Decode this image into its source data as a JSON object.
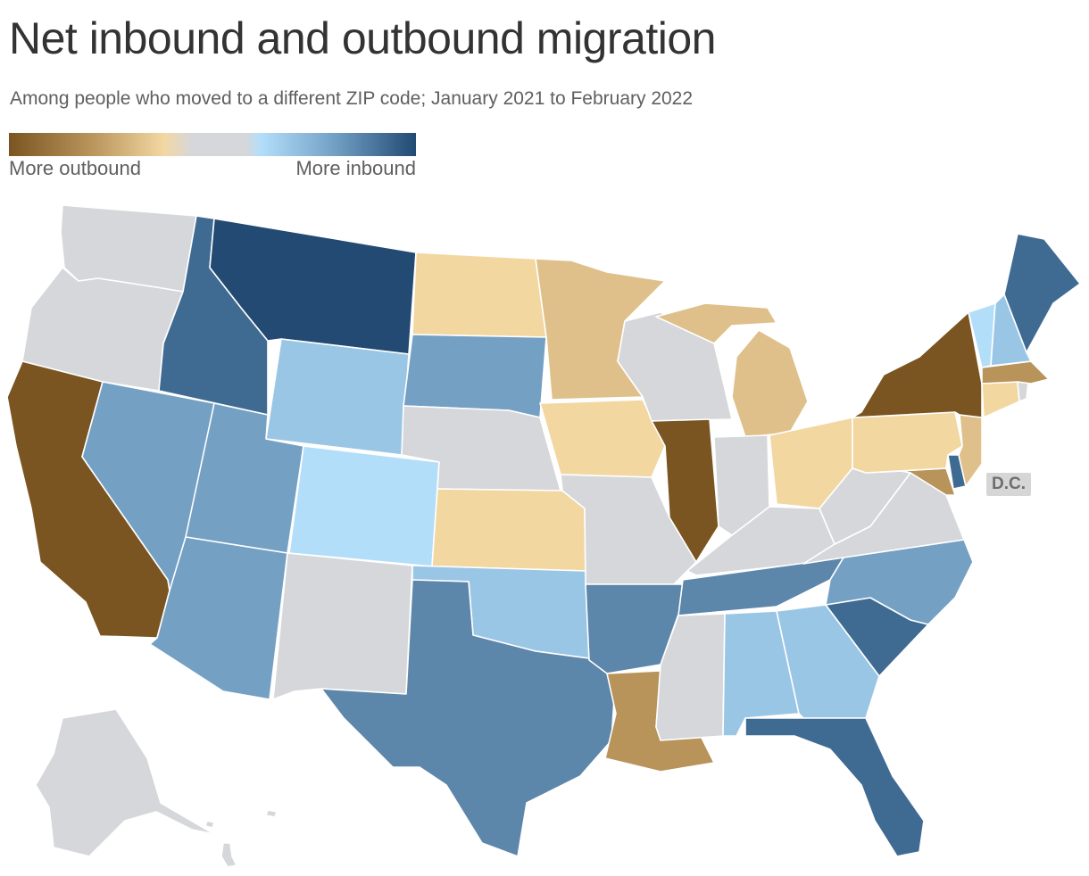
{
  "title": "Net inbound and outbound migration",
  "subtitle": "Among people who moved to a different ZIP code; January 2021 to February 2022",
  "legend": {
    "left_label": "More outbound",
    "right_label": "More inbound",
    "stops": [
      "#7a5521",
      "#b8935a",
      "#f2d7a1",
      "#d6d7da",
      "#b3defa",
      "#72a0c5",
      "#224a73"
    ]
  },
  "dc_label": "D.C.",
  "colors": {
    "strong_in": "#224a73",
    "in_3": "#3f6b93",
    "in_2": "#5d86ab",
    "in_1": "#74a0c4",
    "in_0": "#9ac6e5",
    "light_in": "#b3defa",
    "neutral": "#d6d7da",
    "out_0": "#f2d7a1",
    "out_1": "#dfc08a",
    "out_2": "#b8935a",
    "strong_out": "#7a5521"
  },
  "states": [
    {
      "name": "Washington",
      "level": "neutral"
    },
    {
      "name": "Oregon",
      "level": "neutral"
    },
    {
      "name": "California",
      "level": "strong_out"
    },
    {
      "name": "Idaho",
      "level": "in_3"
    },
    {
      "name": "Nevada",
      "level": "in_1"
    },
    {
      "name": "Montana",
      "level": "strong_in"
    },
    {
      "name": "Wyoming",
      "level": "in_0"
    },
    {
      "name": "Utah",
      "level": "in_1"
    },
    {
      "name": "Arizona",
      "level": "in_1"
    },
    {
      "name": "Colorado",
      "level": "light_in"
    },
    {
      "name": "New Mexico",
      "level": "neutral"
    },
    {
      "name": "North Dakota",
      "level": "out_0"
    },
    {
      "name": "South Dakota",
      "level": "in_1"
    },
    {
      "name": "Nebraska",
      "level": "neutral"
    },
    {
      "name": "Kansas",
      "level": "out_0"
    },
    {
      "name": "Oklahoma",
      "level": "in_0"
    },
    {
      "name": "Texas",
      "level": "in_2"
    },
    {
      "name": "Minnesota",
      "level": "out_1"
    },
    {
      "name": "Iowa",
      "level": "out_0"
    },
    {
      "name": "Missouri",
      "level": "neutral"
    },
    {
      "name": "Arkansas",
      "level": "in_2"
    },
    {
      "name": "Louisiana",
      "level": "out_2"
    },
    {
      "name": "Wisconsin",
      "level": "neutral"
    },
    {
      "name": "Illinois",
      "level": "strong_out"
    },
    {
      "name": "Michigan",
      "level": "out_1"
    },
    {
      "name": "Indiana",
      "level": "neutral"
    },
    {
      "name": "Ohio",
      "level": "out_0"
    },
    {
      "name": "Kentucky",
      "level": "neutral"
    },
    {
      "name": "Tennessee",
      "level": "in_2"
    },
    {
      "name": "Mississippi",
      "level": "neutral"
    },
    {
      "name": "Alabama",
      "level": "in_0"
    },
    {
      "name": "Georgia",
      "level": "in_0"
    },
    {
      "name": "Florida",
      "level": "in_3"
    },
    {
      "name": "South Carolina",
      "level": "in_3"
    },
    {
      "name": "North Carolina",
      "level": "in_1"
    },
    {
      "name": "Virginia",
      "level": "neutral"
    },
    {
      "name": "West Virginia",
      "level": "neutral"
    },
    {
      "name": "Maryland",
      "level": "out_2"
    },
    {
      "name": "Delaware",
      "level": "in_3"
    },
    {
      "name": "Pennsylvania",
      "level": "out_0"
    },
    {
      "name": "New Jersey",
      "level": "out_1"
    },
    {
      "name": "New York",
      "level": "strong_out"
    },
    {
      "name": "Connecticut",
      "level": "out_0"
    },
    {
      "name": "Rhode Island",
      "level": "neutral"
    },
    {
      "name": "Massachusetts",
      "level": "out_2"
    },
    {
      "name": "Vermont",
      "level": "light_in"
    },
    {
      "name": "New Hampshire",
      "level": "in_0"
    },
    {
      "name": "Maine",
      "level": "in_3"
    },
    {
      "name": "Alaska",
      "level": "neutral"
    },
    {
      "name": "Hawaii",
      "level": "neutral"
    }
  ]
}
